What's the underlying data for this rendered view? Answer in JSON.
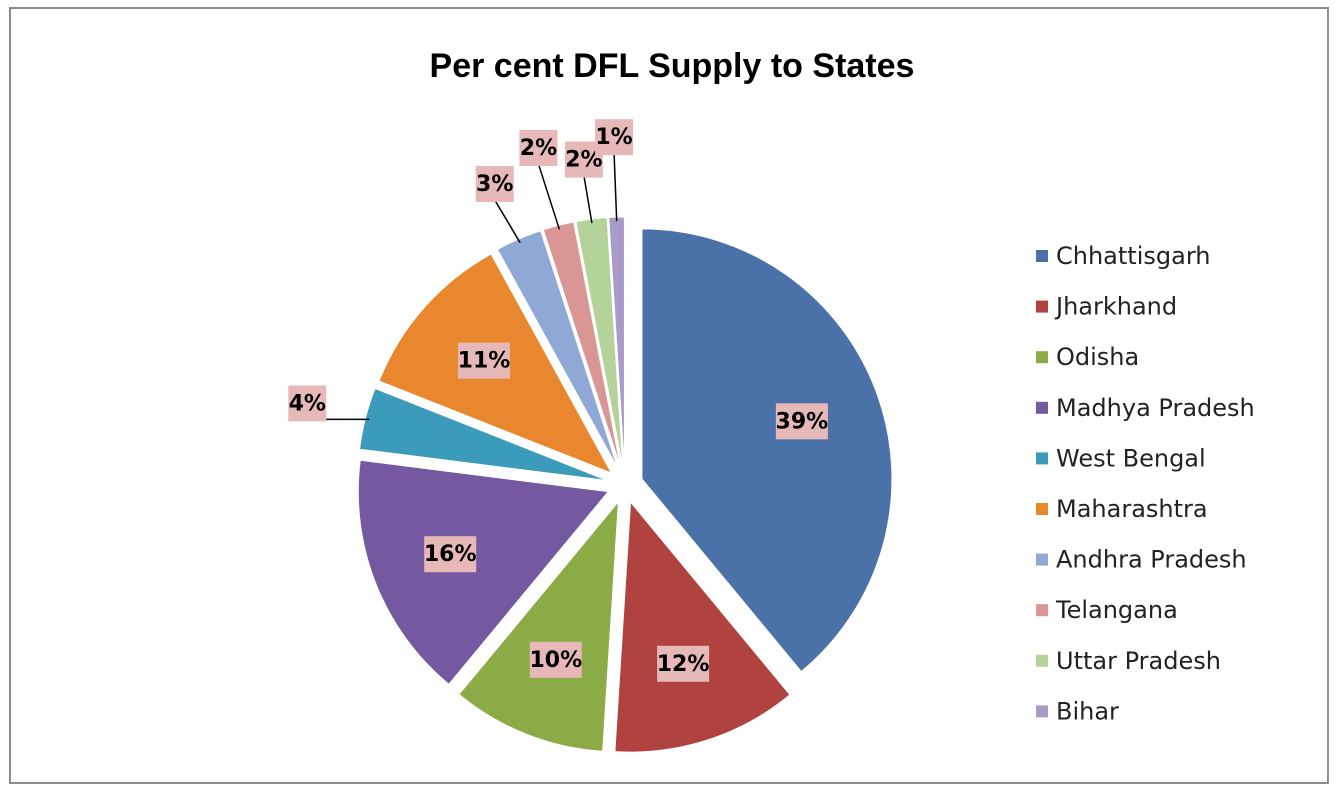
{
  "chart_data": {
    "type": "pie",
    "title": "Per cent DFL Supply to States",
    "categories": [
      "Chhattisgarh",
      "Jharkhand",
      "Odisha",
      "Madhya Pradesh",
      "West Bengal",
      "Maharashtra",
      "Andhra Pradesh",
      "Telangana",
      "Uttar Pradesh",
      "Bihar"
    ],
    "values": [
      39,
      12,
      10,
      16,
      4,
      11,
      3,
      2,
      2,
      1
    ],
    "value_labels": [
      "39%",
      "12%",
      "10%",
      "16%",
      "4%",
      "11%",
      "3%",
      "2%",
      "2%",
      "1%"
    ],
    "colors": [
      "#4a72a8",
      "#b04340",
      "#8aab45",
      "#7458a0",
      "#3a9cba",
      "#e8872e",
      "#8fa8d6",
      "#d99694",
      "#b3d39a",
      "#a99ac9"
    ],
    "legend": "right"
  }
}
